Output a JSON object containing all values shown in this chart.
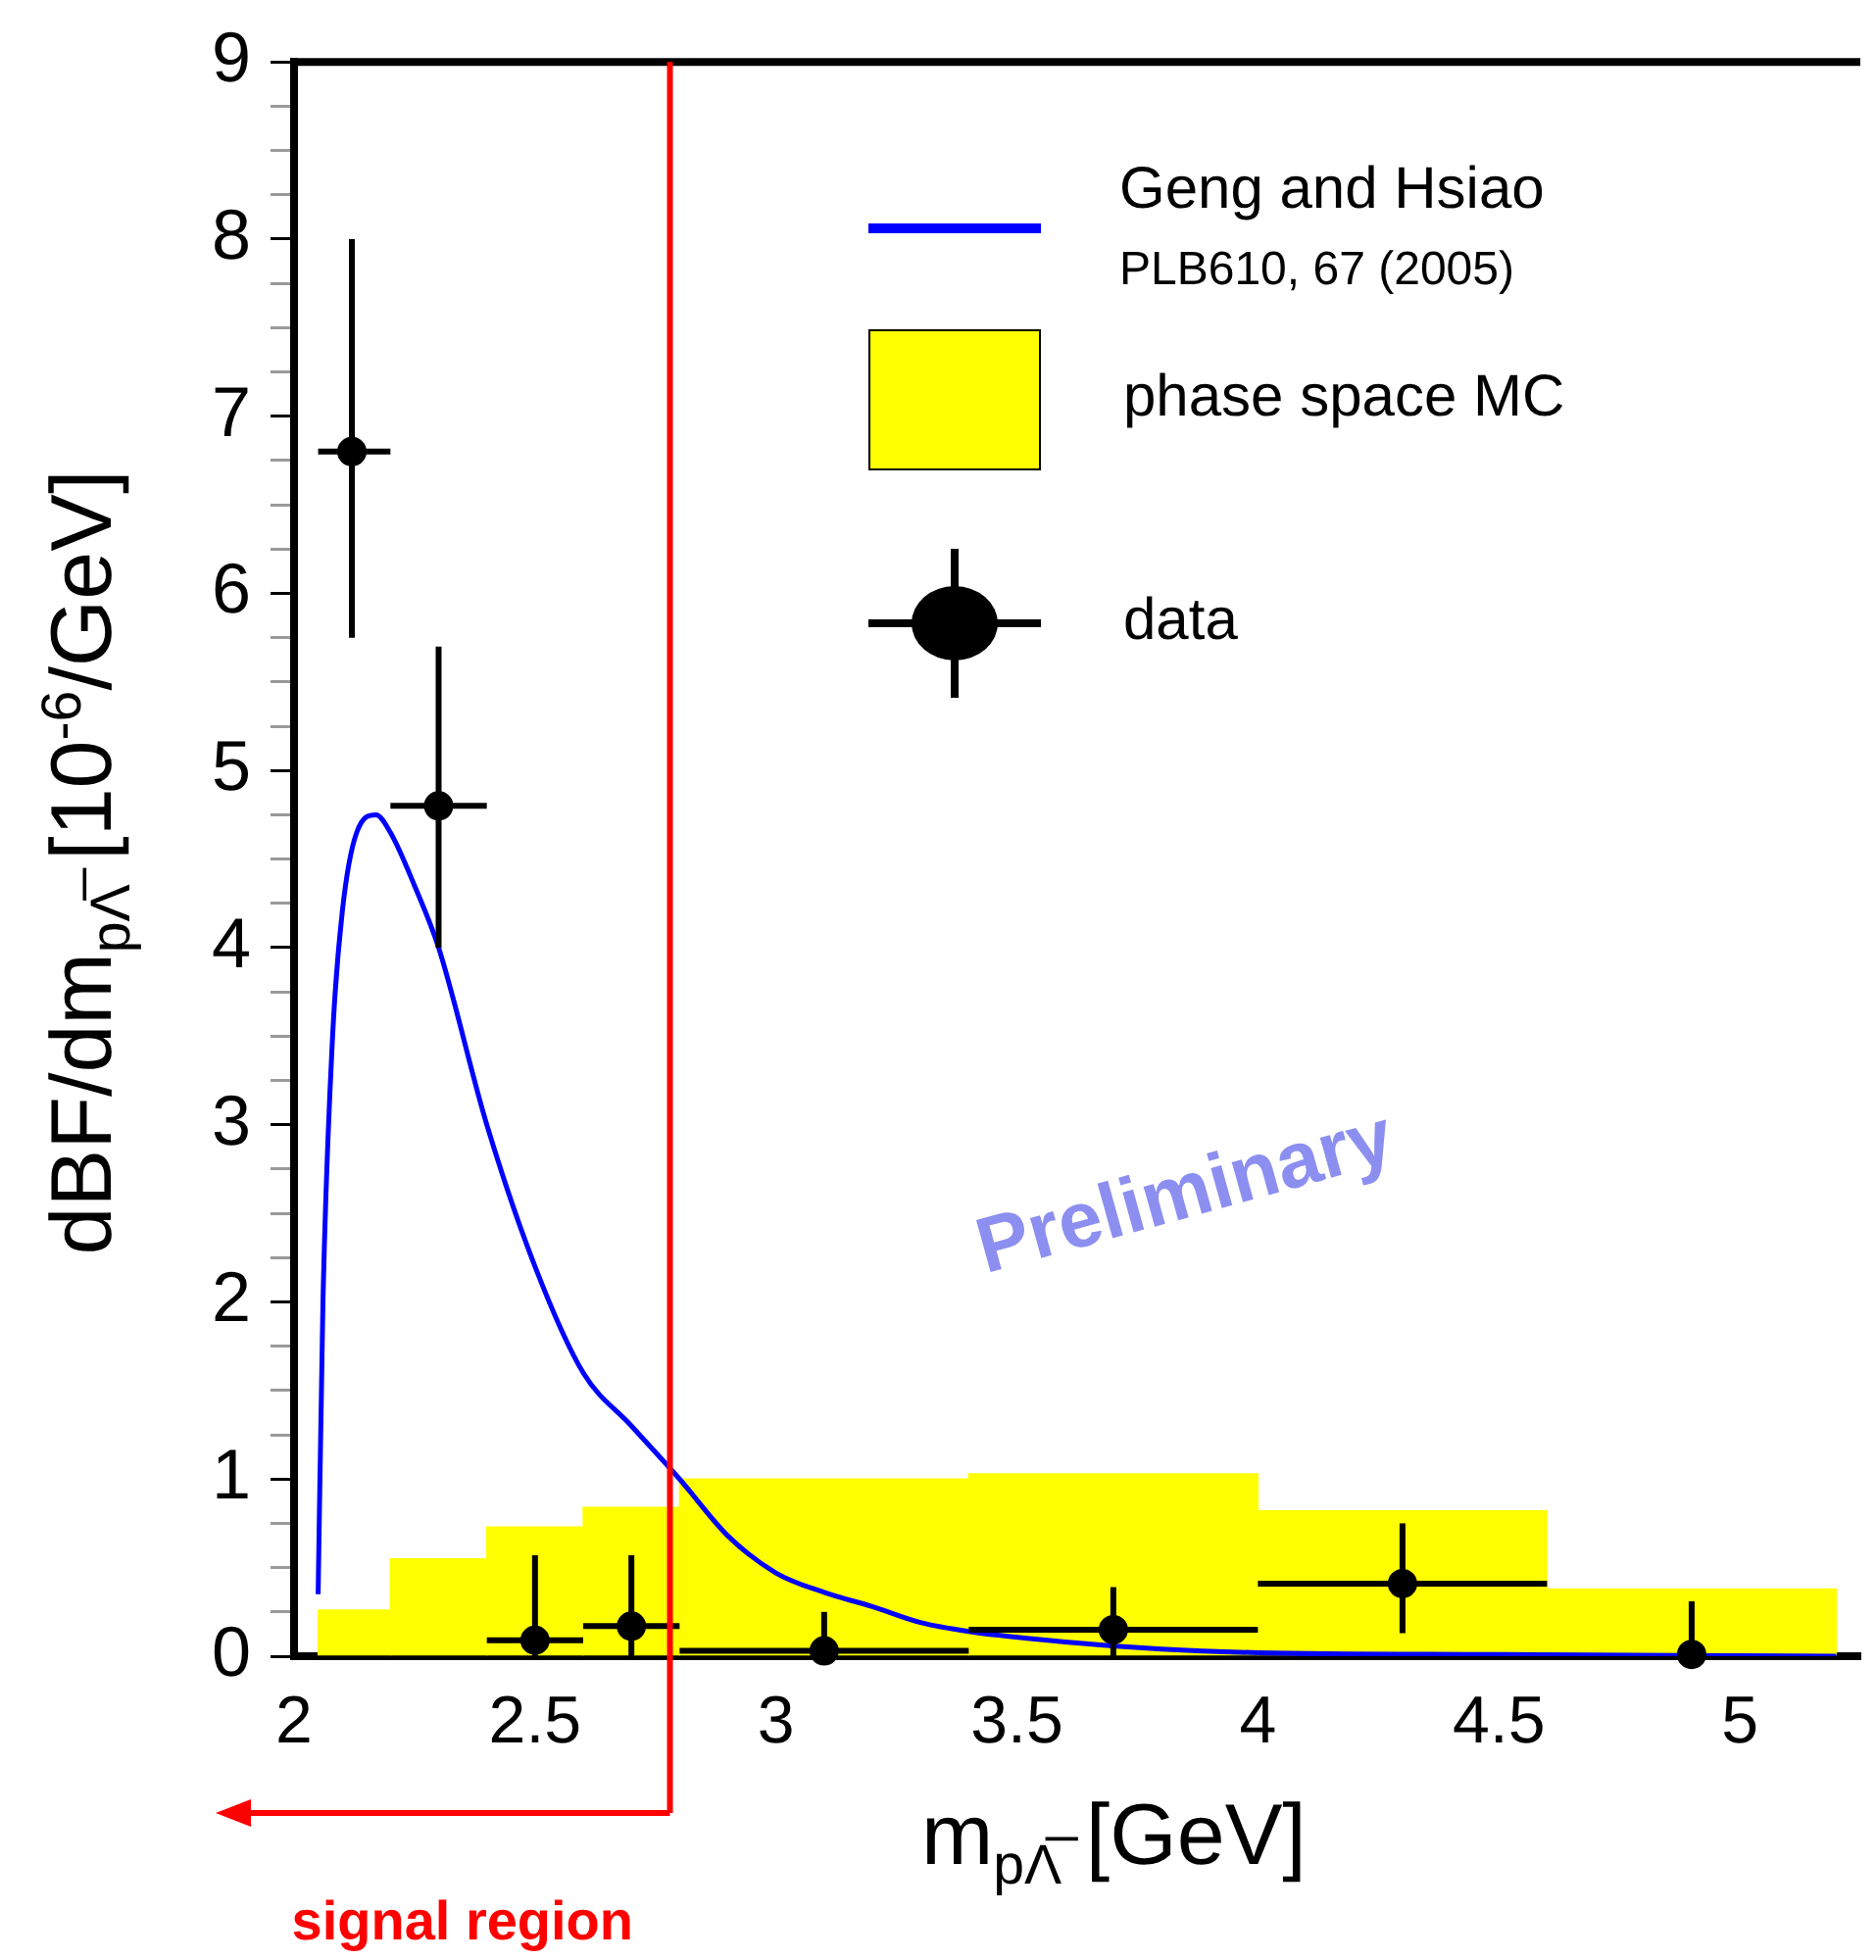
{
  "chart_data": {
    "type": "histogram",
    "xlabel": "m$_{pΛ̅}$ [GeV]",
    "ylabel": "dBF/dm$_{pΛ̅}$ [10$^{-6}$/GeV]",
    "legend": "top right",
    "xlim": [
      2,
      5.25
    ],
    "xticks": [
      2,
      2.5,
      3,
      3.5,
      4,
      4.5,
      5
    ],
    "ylim": [
      0,
      9
    ],
    "yticks": [
      0,
      {
        "value": 0.25,
        "label": null
      },
      {
        "value": 0.5,
        "label": null
      },
      {
        "value": 0.75,
        "label": null
      },
      1,
      {
        "value": 1.25,
        "label": null
      },
      {
        "value": 1.5,
        "label": null
      },
      {
        "value": 1.75,
        "label": null
      },
      2,
      {
        "value": 2.25,
        "label": null
      },
      {
        "value": 2.5,
        "label": null
      },
      {
        "value": 2.75,
        "label": null
      },
      3,
      {
        "value": 3.25,
        "label": null
      },
      {
        "value": 3.5,
        "label": null
      },
      {
        "value": 3.75,
        "label": null
      },
      4,
      {
        "value": 4.25,
        "label": null
      },
      {
        "value": 4.5,
        "label": null
      },
      {
        "value": 4.75,
        "label": null
      },
      5,
      {
        "value": 5.25,
        "label": null
      },
      {
        "value": 5.5,
        "label": null
      },
      {
        "value": 5.75,
        "label": null
      },
      6,
      {
        "value": 6.25,
        "label": null
      },
      {
        "value": 6.5,
        "label": null
      },
      {
        "value": 6.75,
        "label": null
      },
      7,
      {
        "value": 7.25,
        "label": null
      },
      {
        "value": 7.5,
        "label": null
      },
      {
        "value": 7.75,
        "label": null
      },
      8,
      {
        "value": 8.25,
        "label": null
      },
      {
        "value": 8.5,
        "label": null
      },
      {
        "value": 8.75,
        "label": null
      },
      9
    ],
    "series": [
      {
        "type": "line",
        "name": "Geng and Hsiao",
        "color": "#0000ff",
        "x": [
          2.05,
          2.06,
          2.08,
          2.1,
          2.13,
          2.17,
          2.2,
          2.25,
          2.3,
          2.4,
          2.5,
          2.6,
          2.7,
          2.8,
          2.9,
          3.0,
          3.1,
          3.2,
          3.3,
          3.4,
          3.6,
          3.8,
          4.0,
          4.5,
          5.2
        ],
        "values": [
          0.35,
          2.0,
          3.5,
          4.2,
          4.65,
          4.75,
          4.65,
          4.35,
          4.0,
          3.0,
          2.2,
          1.6,
          1.3,
          1.0,
          0.68,
          0.47,
          0.36,
          0.28,
          0.19,
          0.14,
          0.08,
          0.04,
          0.02,
          0.01,
          0.0
        ]
      },
      {
        "type": "histogram",
        "name": "phase space MC",
        "color": "#ffff00",
        "bins": [
          2.05,
          2.2,
          2.4,
          2.6,
          2.8,
          3.4,
          4.0,
          4.6,
          5.2
        ],
        "values": [
          0.26,
          0.55,
          0.73,
          0.84,
          1.0,
          1.03,
          0.82,
          0.38
        ]
      },
      {
        "type": "scatter",
        "name": "data",
        "color": "#000000",
        "marker": "circle",
        "x": [
          2.12,
          2.3,
          2.5,
          2.7,
          3.1,
          3.7,
          4.3,
          4.9
        ],
        "values": [
          6.8,
          4.8,
          0.09,
          0.17,
          0.03,
          0.15,
          0.41,
          0.01
        ],
        "errors": [
          [
            5.75,
            8.0
          ],
          [
            4.0,
            5.7
          ],
          [
            0,
            0.57
          ],
          [
            0,
            0.57
          ],
          [
            0,
            0.25
          ],
          [
            0,
            0.39
          ],
          [
            0.13,
            0.75
          ],
          [
            0,
            0.31
          ]
        ],
        "xerrors": [
          [
            2.05,
            2.2
          ],
          [
            2.2,
            2.4
          ],
          [
            2.4,
            2.6
          ],
          [
            2.6,
            2.8
          ],
          [
            2.8,
            3.4
          ],
          [
            3.4,
            4.0
          ],
          [
            4.0,
            4.6
          ],
          null
        ]
      }
    ],
    "ref_lines": [
      {
        "axis": "x",
        "value": 2.78,
        "label": "signal region",
        "color": "#ff0000"
      }
    ],
    "annotations": [
      "PLB610, 67 (2005)",
      "Preliminary"
    ]
  }
}
